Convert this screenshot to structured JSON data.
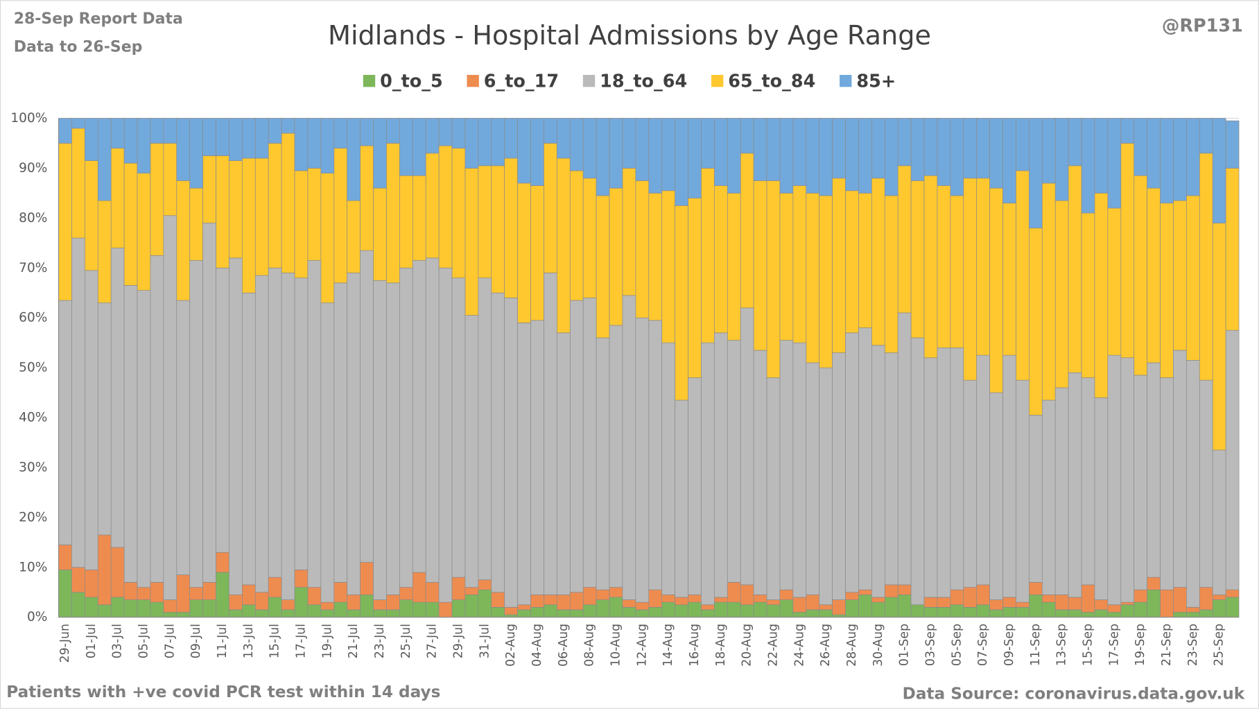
{
  "chart_data": {
    "type": "bar",
    "stacked": true,
    "title": "Midlands - Hospital Admissions by Age Range",
    "report_note": "28-Sep Report Data",
    "data_note": "Data to 26-Sep",
    "author": "@RP131",
    "footnote": "Patients with  +ve covid PCR test within 14 days",
    "source": "Data Source: coronavirus.data.gov.uk",
    "grid": true,
    "legend": "top",
    "ylim": [
      0,
      100
    ],
    "yticks": [
      {
        "value": 0,
        "label": "0%"
      },
      {
        "value": 10,
        "label": "10%"
      },
      {
        "value": 20,
        "label": "20%"
      },
      {
        "value": 30,
        "label": "30%"
      },
      {
        "value": 40,
        "label": "40%"
      },
      {
        "value": 50,
        "label": "50%"
      },
      {
        "value": 60,
        "label": "60%"
      },
      {
        "value": 70,
        "label": "70%"
      },
      {
        "value": 80,
        "label": "80%"
      },
      {
        "value": 90,
        "label": "90%"
      },
      {
        "value": 100,
        "label": "100%"
      }
    ],
    "categories": [
      "29-Jun",
      null,
      "01-Jul",
      null,
      "03-Jul",
      null,
      "05-Jul",
      null,
      "07-Jul",
      null,
      "09-Jul",
      null,
      "11-Jul",
      null,
      "13-Jul",
      null,
      "15-Jul",
      null,
      "17-Jul",
      null,
      "19-Jul",
      null,
      "21-Jul",
      null,
      "23-Jul",
      null,
      "25-Jul",
      null,
      "27-Jul",
      null,
      "29-Jul",
      null,
      "31-Jul",
      null,
      "02-Aug",
      null,
      "04-Aug",
      null,
      "06-Aug",
      null,
      "08-Aug",
      null,
      "10-Aug",
      null,
      "12-Aug",
      null,
      "14-Aug",
      null,
      "16-Aug",
      null,
      "18-Aug",
      null,
      "20-Aug",
      null,
      "22-Aug",
      null,
      "24-Aug",
      null,
      "26-Aug",
      null,
      "28-Aug",
      null,
      "30-Aug",
      null,
      "01-Sep",
      null,
      "03-Sep",
      null,
      "05-Sep",
      null,
      "07-Sep",
      null,
      "09-Sep",
      null,
      "11-Sep",
      null,
      "13-Sep",
      null,
      "15-Sep",
      null,
      "17-Sep",
      null,
      "19-Sep",
      null,
      "21-Sep",
      null,
      "23-Sep",
      null,
      "25-Sep",
      null
    ],
    "series": [
      {
        "name": "0_to_5",
        "color": "#7db75a",
        "values": [
          9.5,
          5,
          4,
          2.5,
          4,
          3.5,
          3.5,
          3,
          1,
          1,
          3.5,
          3.5,
          9,
          1.5,
          2.5,
          1.5,
          4,
          1.5,
          6,
          2.5,
          1.5,
          3,
          1.5,
          4.5,
          1.5,
          1.5,
          3.5,
          3,
          3,
          0,
          3.5,
          4.5,
          5.5,
          2,
          0.5,
          1.5,
          2,
          2.5,
          1.5,
          1.5,
          2.5,
          3.5,
          4,
          2,
          1.5,
          2,
          3,
          2.5,
          3,
          1.5,
          3,
          3,
          2.5,
          3,
          2.5,
          3.5,
          1,
          1.5,
          1.5,
          0.5,
          3.5,
          4.5,
          3,
          4,
          4.5,
          2.5,
          2,
          2,
          2.5,
          2,
          2.5,
          1.5,
          2,
          2,
          4.5,
          3,
          1.5,
          1.5,
          1,
          1.5,
          1,
          2.5,
          3,
          5.5,
          0,
          1,
          1,
          1.5,
          3.5,
          4
        ]
      },
      {
        "name": "6_to_17",
        "color": "#ee8c4f",
        "values": [
          5,
          5,
          5.5,
          14,
          10,
          3.5,
          2.5,
          4,
          2.5,
          7.5,
          2.5,
          3.5,
          4,
          3,
          4,
          3.5,
          4,
          2,
          3.5,
          3.5,
          1.5,
          4,
          3,
          6.5,
          2,
          3,
          2.5,
          6,
          4,
          3,
          4.5,
          1.5,
          2,
          3,
          1.5,
          1,
          2.5,
          2,
          3,
          3.5,
          3.5,
          2,
          2,
          1.5,
          1.5,
          3.5,
          1.5,
          1.5,
          1.5,
          1,
          1,
          4,
          4,
          1.5,
          1,
          2,
          3,
          3,
          1,
          3,
          1.5,
          1,
          1,
          2.5,
          2,
          0,
          2,
          2,
          3,
          4,
          4,
          2,
          2,
          1,
          2.5,
          1.5,
          3,
          2.5,
          5.5,
          2,
          1.5,
          0.5,
          2.5,
          2.5,
          5.5,
          5,
          1,
          4.5,
          1,
          1.5
        ]
      },
      {
        "name": "18_to_64",
        "color": "#bababa",
        "values": [
          49,
          66,
          60,
          46.5,
          60,
          59.5,
          59.5,
          65.5,
          77,
          55,
          65.5,
          72,
          57,
          67.5,
          58.5,
          63.5,
          62,
          65.5,
          58.5,
          65.5,
          60,
          60,
          64.5,
          62.5,
          64,
          62.5,
          64,
          62.5,
          65,
          67,
          60,
          54.5,
          60.5,
          60,
          62,
          56.5,
          55,
          64.5,
          52.5,
          58.5,
          58,
          50.5,
          52.5,
          61,
          57,
          54,
          50.5,
          39.5,
          43.5,
          52.5,
          53,
          48.5,
          55.5,
          49,
          44.5,
          50,
          51,
          46.5,
          47.5,
          49.5,
          52,
          52.5,
          50.5,
          46.5,
          54.5,
          53.5,
          48,
          50,
          48.5,
          41.5,
          46,
          41.5,
          48.5,
          44.5,
          33.5,
          39,
          41.5,
          45,
          41.5,
          40.5,
          50,
          49,
          43,
          43,
          42.5,
          47.5,
          49.5,
          41.5,
          29,
          52
        ]
      },
      {
        "name": "65_to_84",
        "color": "#ffc82f",
        "values": [
          31.5,
          22,
          22,
          20.5,
          20,
          24.5,
          23.5,
          22.5,
          14.5,
          24,
          14.5,
          13.5,
          22.5,
          19.5,
          27,
          23.5,
          25,
          28,
          21.5,
          18.5,
          26,
          27,
          14.5,
          21,
          18.5,
          28,
          18.5,
          17,
          21,
          24.5,
          26,
          29.5,
          22.5,
          25.5,
          28,
          28,
          27,
          26,
          35,
          26,
          24,
          28.5,
          27.5,
          25.5,
          27.5,
          25.5,
          30.5,
          39,
          36,
          35,
          29.5,
          29.5,
          31,
          34,
          39.5,
          29.5,
          31.5,
          34,
          34.5,
          35,
          28.5,
          27,
          33.5,
          31.5,
          29.5,
          31.5,
          36.5,
          32.5,
          30.5,
          40.5,
          35.5,
          41,
          30.5,
          42,
          37.5,
          43.5,
          37.5,
          41.5,
          33,
          41,
          29.5,
          43,
          40,
          35,
          35,
          30,
          33,
          45.5,
          45.5,
          32.5
        ]
      },
      {
        "name": "85+",
        "color": "#72a9dc",
        "values": [
          5,
          2,
          8.5,
          16.5,
          6,
          9,
          11,
          5,
          5,
          12.5,
          14,
          7.5,
          7.5,
          8.5,
          8,
          8,
          5,
          3,
          10.5,
          10,
          11,
          6,
          16.5,
          5.5,
          14,
          5,
          11.5,
          11.5,
          7,
          5.5,
          6,
          10,
          9.5,
          9.5,
          8,
          13,
          13.5,
          5,
          8,
          10.5,
          12,
          15.5,
          14,
          10,
          12.5,
          15,
          14.5,
          17.5,
          16,
          10,
          13.5,
          15,
          7,
          12.5,
          12.5,
          15,
          13.5,
          15,
          15.5,
          12,
          14.5,
          15,
          12,
          15.5,
          9.5,
          12.5,
          11.5,
          13.5,
          15.5,
          12,
          12,
          14,
          17,
          10.5,
          22,
          13,
          16.5,
          9.5,
          19,
          15,
          18,
          5,
          11.5,
          14,
          17,
          16.5,
          15.5,
          7,
          21,
          9.5
        ]
      }
    ]
  }
}
